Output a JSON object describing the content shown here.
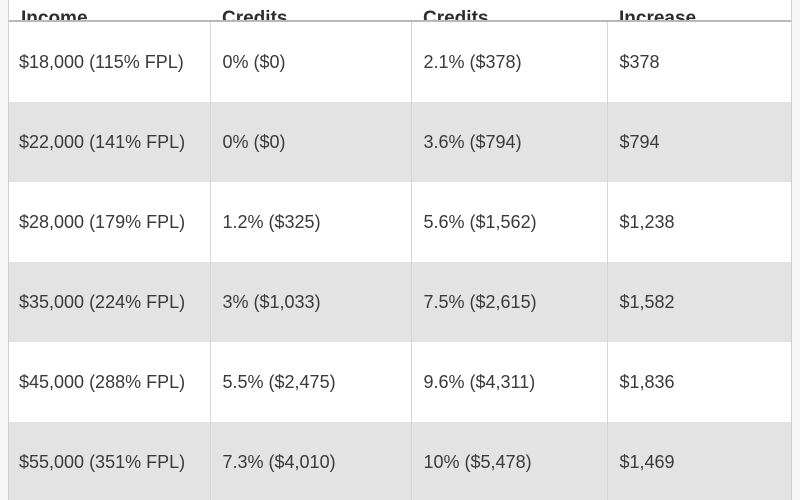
{
  "table": {
    "headers": [
      "Income",
      "Credits",
      "Credits",
      "Increase"
    ],
    "rows": [
      {
        "income": "$18,000 (115% FPL)",
        "current": "0% ($0)",
        "proposed": "2.1% ($378)",
        "increase": "$378"
      },
      {
        "income": "$22,000 (141% FPL)",
        "current": "0% ($0)",
        "proposed": "3.6% ($794)",
        "increase": "$794"
      },
      {
        "income": "$28,000 (179% FPL)",
        "current": "1.2% ($325)",
        "proposed": "5.6% ($1,562)",
        "increase": "$1,238"
      },
      {
        "income": "$35,000 (224% FPL)",
        "current": "3% ($1,033)",
        "proposed": "7.5% ($2,615)",
        "increase": "$1,582"
      },
      {
        "income": "$45,000 (288% FPL)",
        "current": "5.5% ($2,475)",
        "proposed": "9.6% ($4,311)",
        "increase": "$1,836"
      },
      {
        "income": "$55,000 (351% FPL)",
        "current": "7.3% ($4,010)",
        "proposed": "10% ($5,478)",
        "increase": "$1,469"
      }
    ]
  }
}
